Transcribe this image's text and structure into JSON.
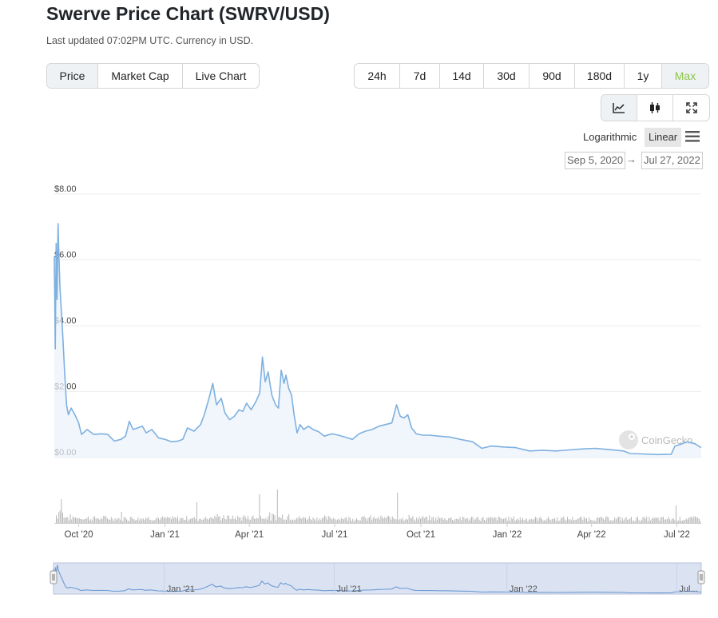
{
  "page": {
    "title": "Swerve Price Chart (SWRV/USD)",
    "updated": "Last updated 07:02PM UTC. Currency in USD."
  },
  "metric_tabs": [
    {
      "label": "Price",
      "active": true
    },
    {
      "label": "Market Cap",
      "active": false
    },
    {
      "label": "Live Chart",
      "active": false
    }
  ],
  "range_tabs": [
    {
      "label": "24h",
      "active": false
    },
    {
      "label": "7d",
      "active": false
    },
    {
      "label": "14d",
      "active": false
    },
    {
      "label": "30d",
      "active": false
    },
    {
      "label": "90d",
      "active": false
    },
    {
      "label": "180d",
      "active": false
    },
    {
      "label": "1y",
      "active": false
    },
    {
      "label": "Max",
      "active": true
    }
  ],
  "chart_types": [
    {
      "icon": "line-chart-icon",
      "active": true
    },
    {
      "icon": "candlestick-icon",
      "active": false
    },
    {
      "icon": "expand-icon",
      "active": false
    }
  ],
  "scale": {
    "log_label": "Logarithmic",
    "linear_label": "Linear",
    "selected": "Linear"
  },
  "date_range": {
    "from": "Sep 5, 2020",
    "arrow": "→",
    "to": "Jul 27, 2022"
  },
  "watermark": "CoinGecko",
  "colors": {
    "line": "#7eb0e0",
    "area": "#eaf2fb",
    "active_green": "#8dc647",
    "navigator_bg": "#dbe3f3",
    "volume": "#b8b8b8"
  },
  "chart_data": {
    "type": "line",
    "title": "",
    "xlabel": "",
    "ylabel": "",
    "ylim": [
      0,
      8
    ],
    "xlim": [
      "2020-09-05",
      "2022-07-27"
    ],
    "y_ticks": [
      {
        "value": 0,
        "label": "$0.00"
      },
      {
        "value": 2,
        "label": "$2.00"
      },
      {
        "value": 4,
        "label": "$4.00"
      },
      {
        "value": 6,
        "label": "$6.00"
      },
      {
        "value": 8,
        "label": "$8.00"
      }
    ],
    "x_ticks": [
      {
        "date": "2020-10-01",
        "label": "Oct '20"
      },
      {
        "date": "2021-01-01",
        "label": "Jan '21"
      },
      {
        "date": "2021-04-01",
        "label": "Apr '21"
      },
      {
        "date": "2021-07-01",
        "label": "Jul '21"
      },
      {
        "date": "2021-10-01",
        "label": "Oct '21"
      },
      {
        "date": "2022-01-01",
        "label": "Jan '22"
      },
      {
        "date": "2022-04-01",
        "label": "Apr '22"
      },
      {
        "date": "2022-07-01",
        "label": "Jul '22"
      }
    ],
    "navigator_ticks": [
      {
        "date": "2021-01-01",
        "label": "Jan '21"
      },
      {
        "date": "2021-07-01",
        "label": "Jul '21"
      },
      {
        "date": "2022-01-01",
        "label": "Jan '22"
      },
      {
        "date": "2022-07-01",
        "label": "Jul..."
      }
    ],
    "series": [
      {
        "points": [
          [
            "2020-09-05",
            6.1
          ],
          [
            "2020-09-06",
            3.3
          ],
          [
            "2020-09-07",
            6.5
          ],
          [
            "2020-09-08",
            4.8
          ],
          [
            "2020-09-09",
            7.1
          ],
          [
            "2020-09-10",
            6.0
          ],
          [
            "2020-09-11",
            5.2
          ],
          [
            "2020-09-12",
            4.7
          ],
          [
            "2020-09-14",
            3.7
          ],
          [
            "2020-09-16",
            2.6
          ],
          [
            "2020-09-18",
            1.6
          ],
          [
            "2020-09-20",
            1.3
          ],
          [
            "2020-09-23",
            1.5
          ],
          [
            "2020-09-27",
            1.3
          ],
          [
            "2020-10-01",
            1.05
          ],
          [
            "2020-10-04",
            0.7
          ],
          [
            "2020-10-10",
            0.85
          ],
          [
            "2020-10-17",
            0.7
          ],
          [
            "2020-10-25",
            0.72
          ],
          [
            "2020-11-01",
            0.7
          ],
          [
            "2020-11-08",
            0.5
          ],
          [
            "2020-11-15",
            0.55
          ],
          [
            "2020-11-20",
            0.65
          ],
          [
            "2020-11-24",
            1.1
          ],
          [
            "2020-11-28",
            0.85
          ],
          [
            "2020-12-03",
            0.9
          ],
          [
            "2020-12-08",
            0.95
          ],
          [
            "2020-12-12",
            0.75
          ],
          [
            "2020-12-18",
            0.85
          ],
          [
            "2020-12-25",
            0.6
          ],
          [
            "2021-01-01",
            0.55
          ],
          [
            "2021-01-08",
            0.48
          ],
          [
            "2021-01-15",
            0.5
          ],
          [
            "2021-01-20",
            0.55
          ],
          [
            "2021-01-25",
            0.9
          ],
          [
            "2021-02-01",
            0.8
          ],
          [
            "2021-02-08",
            1.0
          ],
          [
            "2021-02-12",
            1.3
          ],
          [
            "2021-02-17",
            1.8
          ],
          [
            "2021-02-21",
            2.25
          ],
          [
            "2021-02-25",
            1.6
          ],
          [
            "2021-03-02",
            1.8
          ],
          [
            "2021-03-06",
            1.35
          ],
          [
            "2021-03-11",
            1.15
          ],
          [
            "2021-03-16",
            1.25
          ],
          [
            "2021-03-21",
            1.45
          ],
          [
            "2021-03-25",
            1.4
          ],
          [
            "2021-03-29",
            1.65
          ],
          [
            "2021-04-03",
            1.45
          ],
          [
            "2021-04-08",
            1.7
          ],
          [
            "2021-04-12",
            1.95
          ],
          [
            "2021-04-15",
            3.05
          ],
          [
            "2021-04-18",
            2.3
          ],
          [
            "2021-04-21",
            2.6
          ],
          [
            "2021-04-25",
            1.9
          ],
          [
            "2021-04-29",
            1.6
          ],
          [
            "2021-05-02",
            1.5
          ],
          [
            "2021-05-05",
            2.65
          ],
          [
            "2021-05-08",
            2.25
          ],
          [
            "2021-05-10",
            2.5
          ],
          [
            "2021-05-13",
            2.1
          ],
          [
            "2021-05-16",
            1.9
          ],
          [
            "2021-05-19",
            1.25
          ],
          [
            "2021-05-22",
            0.75
          ],
          [
            "2021-05-25",
            1.0
          ],
          [
            "2021-05-29",
            0.85
          ],
          [
            "2021-06-03",
            0.95
          ],
          [
            "2021-06-08",
            0.85
          ],
          [
            "2021-06-14",
            0.78
          ],
          [
            "2021-06-20",
            0.65
          ],
          [
            "2021-06-28",
            0.72
          ],
          [
            "2021-07-05",
            0.68
          ],
          [
            "2021-07-12",
            0.62
          ],
          [
            "2021-07-20",
            0.55
          ],
          [
            "2021-07-27",
            0.72
          ],
          [
            "2021-08-03",
            0.8
          ],
          [
            "2021-08-10",
            0.85
          ],
          [
            "2021-08-17",
            0.95
          ],
          [
            "2021-08-24",
            1.0
          ],
          [
            "2021-08-31",
            1.05
          ],
          [
            "2021-09-05",
            1.6
          ],
          [
            "2021-09-09",
            1.25
          ],
          [
            "2021-09-13",
            1.2
          ],
          [
            "2021-09-17",
            1.3
          ],
          [
            "2021-09-21",
            0.9
          ],
          [
            "2021-09-26",
            0.72
          ],
          [
            "2021-10-03",
            0.68
          ],
          [
            "2021-10-10",
            0.68
          ],
          [
            "2021-10-20",
            0.65
          ],
          [
            "2021-11-01",
            0.62
          ],
          [
            "2021-11-12",
            0.55
          ],
          [
            "2021-11-25",
            0.48
          ],
          [
            "2021-12-05",
            0.28
          ],
          [
            "2021-12-15",
            0.35
          ],
          [
            "2021-12-28",
            0.32
          ],
          [
            "2022-01-10",
            0.3
          ],
          [
            "2022-01-25",
            0.2
          ],
          [
            "2022-02-08",
            0.22
          ],
          [
            "2022-02-22",
            0.2
          ],
          [
            "2022-03-08",
            0.23
          ],
          [
            "2022-03-22",
            0.26
          ],
          [
            "2022-04-05",
            0.28
          ],
          [
            "2022-04-20",
            0.24
          ],
          [
            "2022-05-05",
            0.2
          ],
          [
            "2022-05-12",
            0.12
          ],
          [
            "2022-05-25",
            0.11
          ],
          [
            "2022-06-10",
            0.09
          ],
          [
            "2022-06-25",
            0.1
          ],
          [
            "2022-06-29",
            0.35
          ],
          [
            "2022-07-05",
            0.4
          ],
          [
            "2022-07-12",
            0.48
          ],
          [
            "2022-07-20",
            0.42
          ],
          [
            "2022-07-27",
            0.3
          ]
        ]
      }
    ]
  }
}
